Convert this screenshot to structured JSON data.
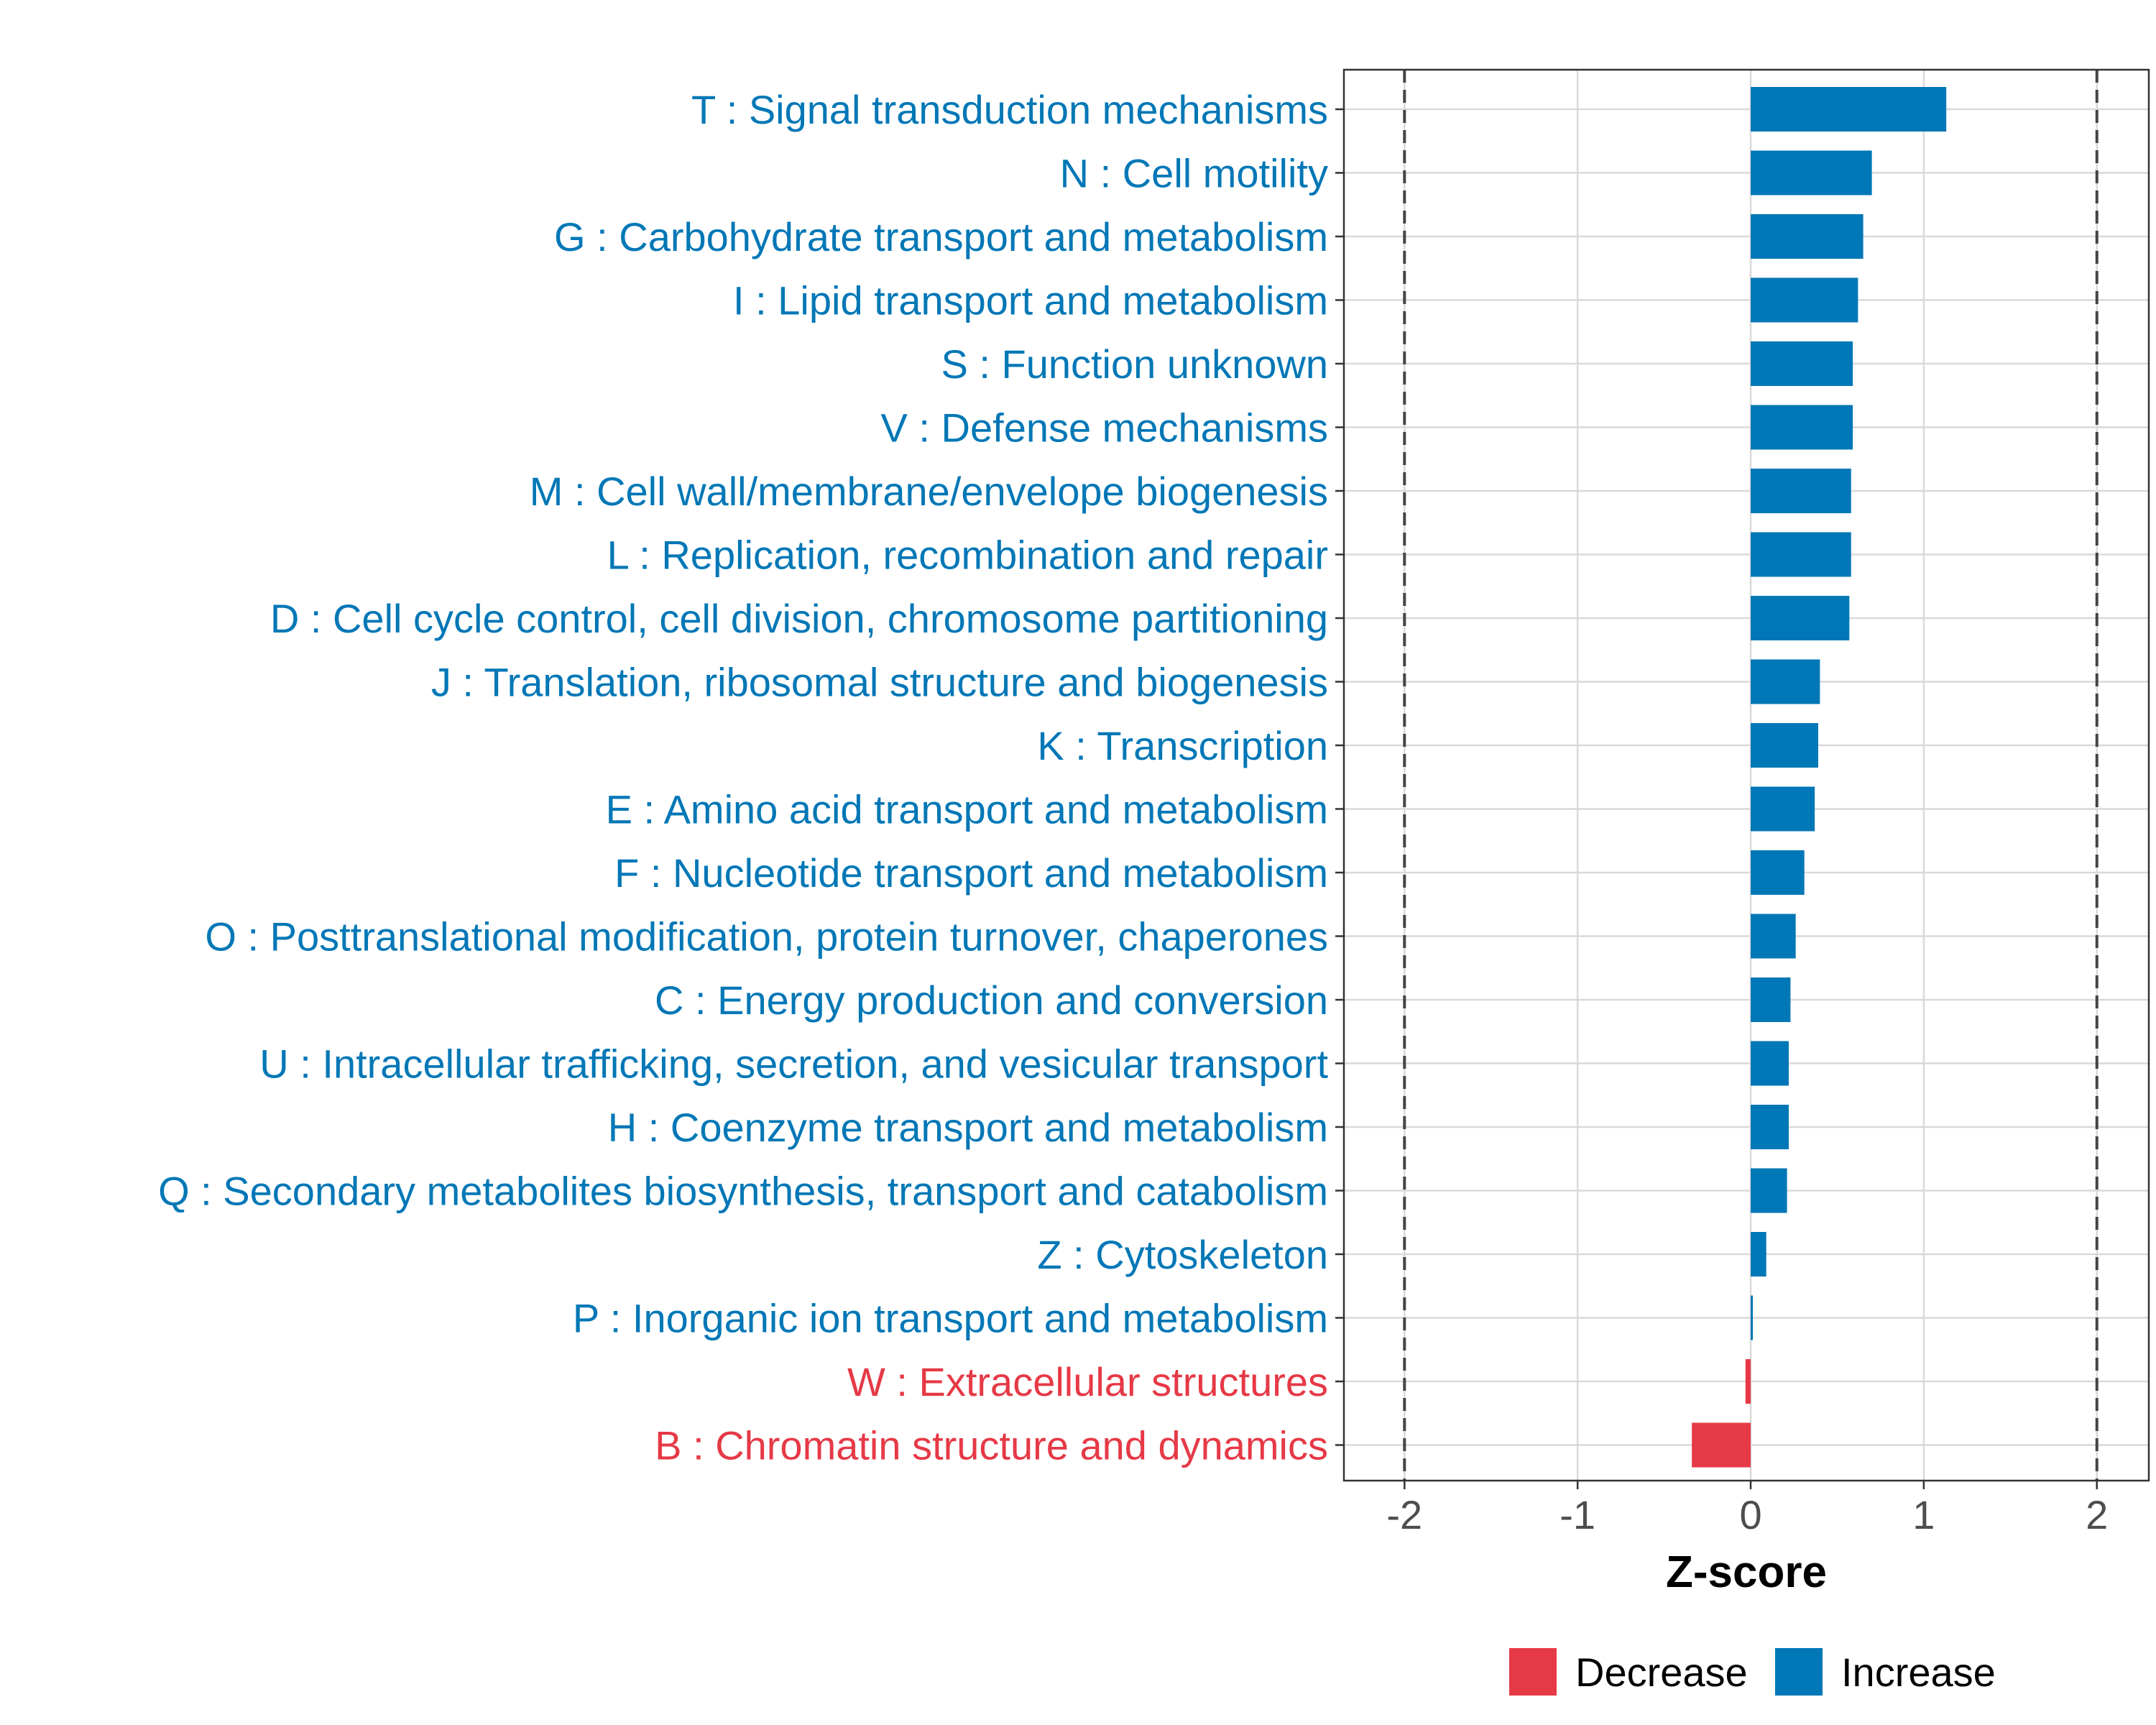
{
  "chart_data": {
    "type": "bar",
    "orientation": "horizontal",
    "xlabel": "Z-score",
    "ylabel": "",
    "xlim": [
      -2.35,
      2.3
    ],
    "xticks": [
      -2,
      -1,
      0,
      1,
      2
    ],
    "xtick_labels": [
      "-2",
      "-1",
      "0",
      "1",
      "2"
    ],
    "grid": true,
    "reference_lines": [
      -2,
      2
    ],
    "legend_position": "bottom",
    "legend": [
      {
        "name": "Decrease",
        "color": "#E63946"
      },
      {
        "name": "Increase",
        "color": "#0077B6"
      }
    ],
    "categories": [
      "T : Signal transduction mechanisms",
      "N : Cell motility",
      "G : Carbohydrate transport and metabolism",
      "I : Lipid transport and metabolism",
      "S : Function unknown",
      "V : Defense mechanisms",
      "M : Cell wall/membrane/envelope biogenesis",
      "L : Replication, recombination and repair",
      "D : Cell cycle control, cell division, chromosome partitioning",
      "J : Translation, ribosomal structure and biogenesis",
      "K : Transcription",
      "E : Amino acid transport and metabolism",
      "F : Nucleotide transport and metabolism",
      "O : Posttranslational modification, protein turnover, chaperones",
      "C : Energy production and conversion",
      "U : Intracellular trafficking, secretion, and vesicular transport",
      "H : Coenzyme transport and metabolism",
      "Q : Secondary metabolites biosynthesis, transport and catabolism",
      "Z : Cytoskeleton",
      "P : Inorganic ion transport and metabolism",
      "W : Extracellular structures",
      "B : Chromatin structure and dynamics"
    ],
    "values": [
      1.13,
      0.7,
      0.65,
      0.62,
      0.59,
      0.59,
      0.58,
      0.58,
      0.57,
      0.4,
      0.39,
      0.37,
      0.31,
      0.26,
      0.23,
      0.22,
      0.22,
      0.21,
      0.09,
      0.01,
      -0.03,
      -0.34
    ],
    "groups": [
      "Increase",
      "Increase",
      "Increase",
      "Increase",
      "Increase",
      "Increase",
      "Increase",
      "Increase",
      "Increase",
      "Increase",
      "Increase",
      "Increase",
      "Increase",
      "Increase",
      "Increase",
      "Increase",
      "Increase",
      "Increase",
      "Increase",
      "Increase",
      "Decrease",
      "Decrease"
    ]
  },
  "colors": {
    "increase": "#0077B6",
    "decrease": "#E63946",
    "grid": "#D9D9D9",
    "axis": "#333333",
    "tick_text": "#4D4D4D"
  }
}
